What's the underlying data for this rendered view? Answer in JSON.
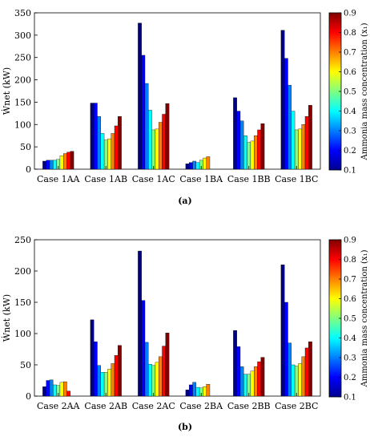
{
  "colorbar": {
    "title": "Ammonia mass concentration (x₁)",
    "min": 0.1,
    "max": 0.9,
    "ticks": [
      "0.1",
      "0.2",
      "0.3",
      "0.4",
      "0.5",
      "0.6",
      "0.7",
      "0.8",
      "0.9"
    ]
  },
  "concentrations": [
    0.1,
    0.2,
    0.3,
    0.4,
    0.5,
    0.6,
    0.7,
    0.8,
    0.9
  ],
  "chart_data": [
    {
      "type": "bar",
      "panel_label": "(a)",
      "ylabel": "Ẇnet (kW)",
      "ylim": [
        0,
        350
      ],
      "yticks": [
        "0",
        "50",
        "100",
        "150",
        "200",
        "250",
        "300",
        "350"
      ],
      "categories": [
        "Case 1AA",
        "Case 1AB",
        "Case 1AC",
        "Case 1BA",
        "Case 1BB",
        "Case 1BC"
      ],
      "values": [
        [
          18,
          20,
          20,
          20,
          22,
          30,
          35,
          38,
          40
        ],
        [
          148,
          148,
          118,
          80,
          65,
          68,
          80,
          97,
          118
        ],
        [
          327,
          255,
          192,
          132,
          88,
          90,
          105,
          123,
          147
        ],
        [
          12,
          15,
          18,
          15,
          20,
          25,
          28,
          0,
          0
        ],
        [
          160,
          130,
          108,
          75,
          60,
          63,
          75,
          88,
          102
        ],
        [
          311,
          248,
          188,
          130,
          88,
          90,
          100,
          118,
          143
        ]
      ]
    },
    {
      "type": "bar",
      "panel_label": "(b)",
      "ylabel": "Ẇnet (kW)",
      "ylim": [
        0,
        250
      ],
      "yticks": [
        "0",
        "50",
        "100",
        "150",
        "200",
        "250"
      ],
      "categories": [
        "Case 2AA",
        "Case 2AB",
        "Case 2AC",
        "Case 2BA",
        "Case 2BB",
        "Case 2BC"
      ],
      "values": [
        [
          15,
          25,
          26,
          18,
          17,
          22,
          23,
          8,
          0
        ],
        [
          122,
          87,
          49,
          38,
          38,
          43,
          52,
          65,
          81
        ],
        [
          232,
          153,
          86,
          51,
          49,
          54,
          63,
          80,
          101
        ],
        [
          10,
          18,
          22,
          14,
          13,
          15,
          19,
          0,
          0
        ],
        [
          105,
          79,
          47,
          35,
          35,
          40,
          47,
          55,
          62
        ],
        [
          210,
          150,
          85,
          50,
          48,
          52,
          63,
          77,
          87
        ]
      ]
    }
  ]
}
